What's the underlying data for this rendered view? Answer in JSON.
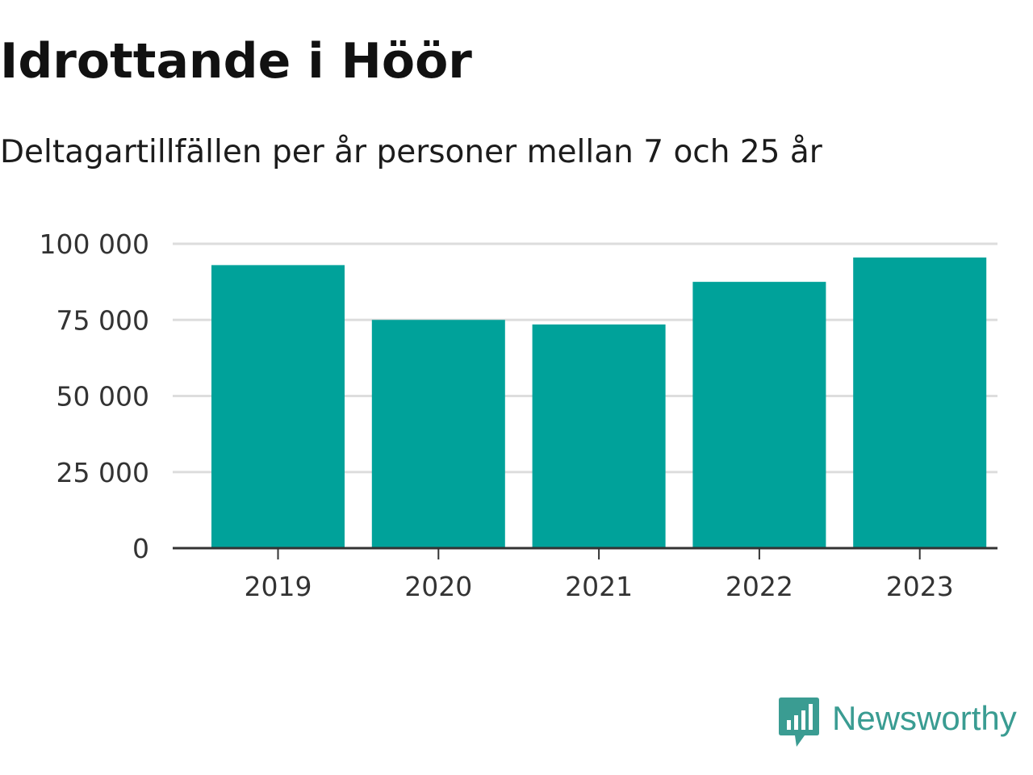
{
  "title": "Idrottande i Höör",
  "subtitle": "Deltagartillfällen per år personer mellan 7 och 25 år",
  "colors": {
    "bar": "#00a29a",
    "grid": "#dddddd",
    "axis": "#333333",
    "text": "#333333",
    "brand": "#3a9c92"
  },
  "chart_data": {
    "type": "bar",
    "title": "Idrottande i Höör",
    "subtitle": "Deltagartillfällen per år personer mellan 7 och 25 år",
    "categories": [
      "2019",
      "2020",
      "2021",
      "2022",
      "2023"
    ],
    "values": [
      93000,
      75000,
      73500,
      87500,
      95500
    ],
    "xlabel": "",
    "ylabel": "",
    "ylim": [
      0,
      100000
    ],
    "yticks": [
      0,
      25000,
      50000,
      75000,
      100000
    ],
    "ytick_labels": [
      "0",
      "25 000",
      "50 000",
      "75 000",
      "100 000"
    ],
    "grid": true,
    "legend": "none"
  },
  "branding": {
    "name": "Newsworthy",
    "icon": "newsworthy-logo-icon"
  }
}
